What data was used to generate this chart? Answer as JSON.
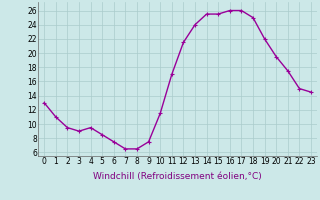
{
  "x": [
    0,
    1,
    2,
    3,
    4,
    5,
    6,
    7,
    8,
    9,
    10,
    11,
    12,
    13,
    14,
    15,
    16,
    17,
    18,
    19,
    20,
    21,
    22,
    23
  ],
  "y": [
    13,
    11,
    9.5,
    9,
    9.5,
    8.5,
    7.5,
    6.5,
    6.5,
    7.5,
    11.5,
    17,
    21.5,
    24,
    25.5,
    25.5,
    26,
    26,
    25,
    22,
    19.5,
    17.5,
    15,
    14.5
  ],
  "line_color": "#990099",
  "marker": "+",
  "marker_size": 3,
  "marker_linewidth": 0.8,
  "bg_color": "#cce8e8",
  "grid_color": "#aacccc",
  "xlabel": "Windchill (Refroidissement éolien,°C)",
  "xlabel_fontsize": 6.5,
  "xlabel_color": "#800080",
  "yticks": [
    6,
    8,
    10,
    12,
    14,
    16,
    18,
    20,
    22,
    24,
    26
  ],
  "xticks": [
    0,
    1,
    2,
    3,
    4,
    5,
    6,
    7,
    8,
    9,
    10,
    11,
    12,
    13,
    14,
    15,
    16,
    17,
    18,
    19,
    20,
    21,
    22,
    23
  ],
  "ylim": [
    5.5,
    27.2
  ],
  "xlim": [
    -0.5,
    23.5
  ],
  "tick_fontsize": 5.5,
  "line_width": 1.0
}
